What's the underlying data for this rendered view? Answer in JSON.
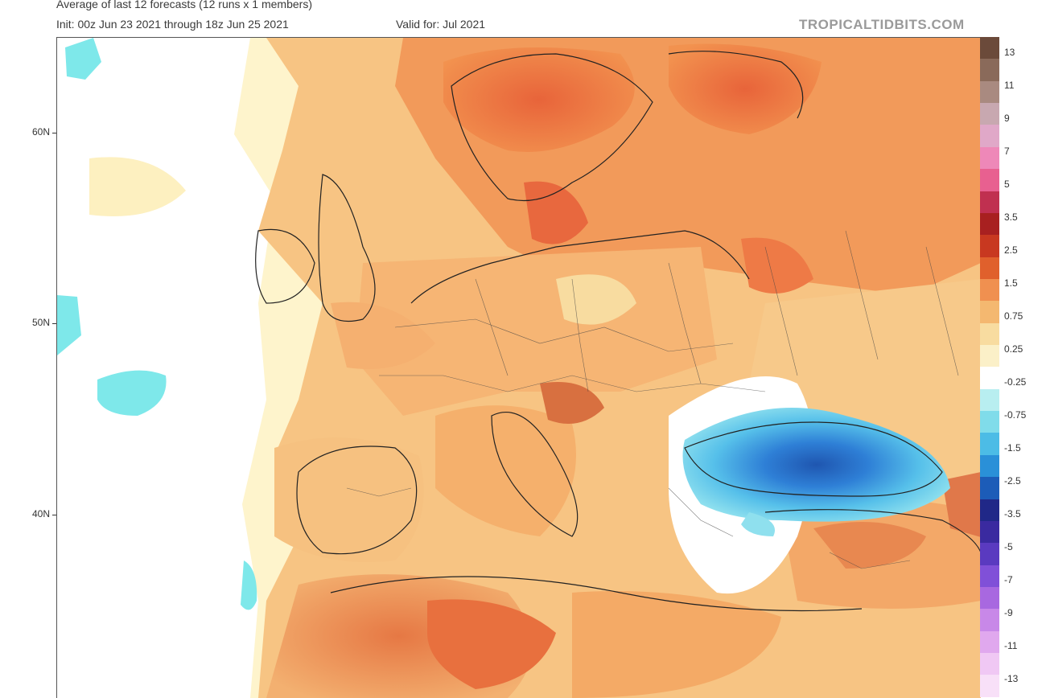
{
  "header": {
    "title": "Average of last 12 forecasts (12 runs x 1 members)",
    "init": "Init: 00z Jun 23 2021 through 18z Jun 25 2021",
    "valid": "Valid for: Jul 2021",
    "brand": "TROPICALTIDBITS.COM"
  },
  "map": {
    "latitude_labels": [
      "60N",
      "50N",
      "40N"
    ],
    "features": [
      "sea-icon",
      "land-icon",
      "coastline-icon",
      "border-icon",
      "anomaly-shading-icon"
    ]
  },
  "colorbar": {
    "labels": [
      "13",
      "11",
      "9",
      "7",
      "5",
      "3.5",
      "2.5",
      "1.5",
      "0.75",
      "0.25",
      "-0.25",
      "-0.75",
      "-1.5",
      "-2.5",
      "-3.5",
      "-5",
      "-7",
      "-9",
      "-11",
      "-13"
    ],
    "colors": [
      "#6b4a3a",
      "#8a6a5a",
      "#a98a80",
      "#c8a8b0",
      "#e0a8c8",
      "#ee88b8",
      "#e86090",
      "#c03050",
      "#a82020",
      "#c83820",
      "#e0602c",
      "#f09050",
      "#f4b870",
      "#f8dca0",
      "#fbf0c8",
      "#ffffff",
      "#b8eef0",
      "#80dcea",
      "#4cbce6",
      "#2a90d8",
      "#1c5cb8",
      "#202888",
      "#3a2aa0",
      "#5a3ac0",
      "#8050d8",
      "#a868e0",
      "#c888e8",
      "#e0a8ee",
      "#f0c8f4",
      "#f8e0f8"
    ],
    "negative_colors": [
      "#b8eef0",
      "#80dcea",
      "#4cbce6",
      "#2a90d8",
      "#1c5cb8",
      "#202888",
      "#3a2aa0",
      "#5a3ac0",
      "#8050d8",
      "#a868e0",
      "#c888e8",
      "#e0a8ee",
      "#f0c8f4"
    ]
  }
}
